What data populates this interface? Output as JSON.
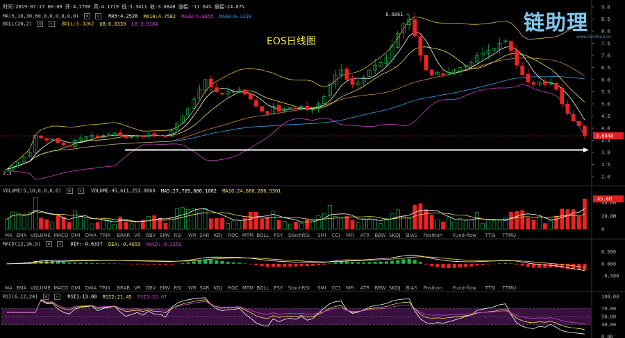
{
  "info_bar": {
    "text": "时间:2019-07-17 00:00  开:4.1700  高:4.1719  低:3.3411  收:3.6848  涨幅:-11.64%  振幅:24.87%"
  },
  "ma_line": {
    "label": "MA(5,10,30,60,0,0,0,0,0,0)",
    "ma5": "MA5:4.2528",
    "ma10": "MA10:4.7582",
    "ma30": "MA30:5.8855",
    "ma60": "MA60:6.3338"
  },
  "boll_line": {
    "label": "BOLL(20,2)",
    "boll": "BOLL:5.3262",
    "ub": "UB:6.8339",
    "lb": "LB:3.8184"
  },
  "chart_title": "EOS日线图",
  "watermark": {
    "brand": "链助理",
    "url": "www.lianzhuli.cn"
  },
  "main_axis": {
    "ticks": [
      "9.0",
      "8.5",
      "8.0",
      "7.5",
      "7.0",
      "6.5",
      "6.0",
      "5.5",
      "5.0",
      "4.5",
      "4.0",
      "3.5",
      "3.0",
      "2.5",
      "2.0"
    ],
    "last_price": "3.6848",
    "high_label": "8.6861",
    "low_label": "2.3"
  },
  "volume": {
    "label": "VOLUME(5,10,0,0,0,0)",
    "volume": "VOLUME:45,611,253.0060",
    "ma5": "MA5:27,705,886.1062",
    "ma10": "MA10:24,680,286.9301",
    "axis_ticks": [
      "40.0M",
      "20.0M",
      "0"
    ],
    "last_value": "45.6M"
  },
  "tabs_1": [
    "MA",
    "EMA",
    "VOLUME",
    "MACD",
    "DMI",
    "DMA",
    "TRIX",
    "BRAR",
    "VR",
    "OBV",
    "EMV",
    "RSI",
    "WR",
    "SAR",
    "KDJ",
    "ROC",
    "MTM",
    "BOLL",
    "PSY",
    "StochRSI",
    "SMI",
    "CCI",
    "MFI",
    "ATR",
    "BBW",
    "SKDJ",
    "BIAS",
    "Position",
    "Fund-flow",
    "TTSI",
    "TTMU"
  ],
  "macd": {
    "label": "MACD(12,26,9)",
    "dif": "DIF:-0.6337",
    "dea": "DEA:-0.4659",
    "macd": "MACD:-0.3356",
    "axis_ticks": [
      "0.500",
      "0.000",
      "-0.500"
    ]
  },
  "tabs_2": [
    "MA",
    "EMA",
    "VOLUME",
    "MACD",
    "DMI",
    "DMA",
    "TRIX",
    "BRAR",
    "VR",
    "OBV",
    "EMV",
    "RSI",
    "WR",
    "SAR",
    "KDJ",
    "ROC",
    "MTM",
    "BOLL",
    "PSY",
    "StochRSI",
    "SMI",
    "CCI",
    "MFI",
    "ATR",
    "BBW",
    "SKDJ",
    "BIAS",
    "Position",
    "Fund-flow",
    "TTSI",
    "TTMU"
  ],
  "rsi": {
    "label": "RSI(6,12,24)",
    "rsi1": "RSI1:13.00",
    "rsi2": "RSI2:21.45",
    "rsi3": "RSI3:32.07",
    "axis_ticks": [
      "100.00",
      "70.00",
      "50.00",
      "30.00",
      "0.00"
    ]
  },
  "colors": {
    "up": "#19b84b",
    "down": "#ee2222",
    "ma5": "#ffffff",
    "ma10": "#f5e35a",
    "ma30": "#cc44cc",
    "ma60": "#2f9bd6",
    "boll": "#e0c23c",
    "arrow": "#ffffff",
    "active_tab": "#3a8ce0"
  },
  "chart_data": {
    "type": "candlestick",
    "title": "EOS日线图",
    "closes": [
      2.3,
      2.45,
      2.6,
      2.8,
      3.0,
      3.7,
      3.6,
      3.5,
      3.55,
      3.4,
      3.3,
      3.25,
      3.5,
      3.6,
      3.65,
      3.7,
      3.6,
      3.7,
      3.75,
      3.8,
      3.7,
      3.6,
      3.65,
      3.7,
      3.65,
      3.75,
      3.7,
      3.7,
      3.65,
      3.9,
      4.2,
      4.5,
      4.8,
      5.2,
      5.6,
      6.0,
      5.7,
      5.5,
      5.4,
      5.5,
      5.5,
      5.6,
      5.4,
      5.2,
      4.9,
      4.7,
      4.6,
      4.9,
      4.7,
      4.8,
      4.85,
      4.8,
      4.9,
      4.75,
      4.8,
      5.0,
      5.3,
      5.8,
      6.2,
      6.4,
      6.0,
      5.8,
      5.9,
      6.1,
      6.4,
      6.6,
      6.7,
      6.9,
      7.4,
      7.9,
      8.3,
      8.5,
      7.8,
      7.0,
      6.4,
      6.2,
      6.3,
      6.2,
      6.3,
      6.4,
      6.5,
      6.6,
      6.7,
      7.0,
      7.1,
      7.2,
      7.3,
      7.5,
      7.6,
      7.2,
      6.6,
      6.2,
      5.9,
      5.8,
      5.9,
      5.8,
      5.9,
      5.6,
      5.0,
      4.6,
      4.3,
      4.1,
      3.68
    ],
    "ylim": [
      1.8,
      9.0
    ],
    "last_close": 3.6848,
    "high": 8.6861,
    "low": 2.3
  }
}
